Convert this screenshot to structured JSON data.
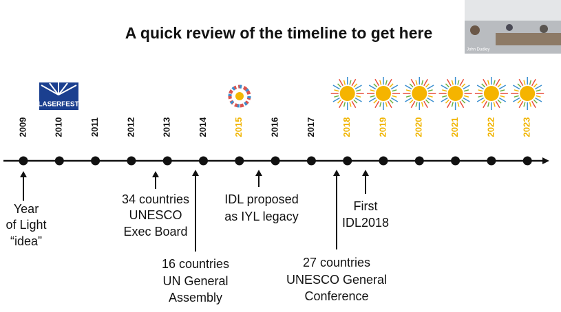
{
  "title": "A quick review of the timeline to get here",
  "video": {
    "name": "John Dudley"
  },
  "logo": {
    "text": "LASERFEST"
  },
  "years": [
    {
      "label": "2009",
      "highlight": false
    },
    {
      "label": "2010",
      "highlight": false
    },
    {
      "label": "2011",
      "highlight": false
    },
    {
      "label": "2012",
      "highlight": false
    },
    {
      "label": "2013",
      "highlight": false
    },
    {
      "label": "2014",
      "highlight": false
    },
    {
      "label": "2015",
      "highlight": true
    },
    {
      "label": "2016",
      "highlight": false
    },
    {
      "label": "2017",
      "highlight": false
    },
    {
      "label": "2018",
      "highlight": true
    },
    {
      "label": "2019",
      "highlight": true
    },
    {
      "label": "2020",
      "highlight": true
    },
    {
      "label": "2021",
      "highlight": true
    },
    {
      "label": "2022",
      "highlight": true
    },
    {
      "label": "2023",
      "highlight": true
    }
  ],
  "events": [
    {
      "lines": [
        "Year",
        "of Light",
        "“idea”"
      ]
    },
    {
      "lines": [
        "34 countries",
        "UNESCO",
        "Exec Board"
      ]
    },
    {
      "lines": [
        "16 countries",
        "UN General",
        "Assembly"
      ]
    },
    {
      "lines": [
        "IDL proposed",
        "as IYL legacy"
      ]
    },
    {
      "lines": [
        "27 countries",
        "UNESCO General",
        "Conference"
      ]
    },
    {
      "lines": [
        "First",
        "IDL2018"
      ]
    }
  ]
}
